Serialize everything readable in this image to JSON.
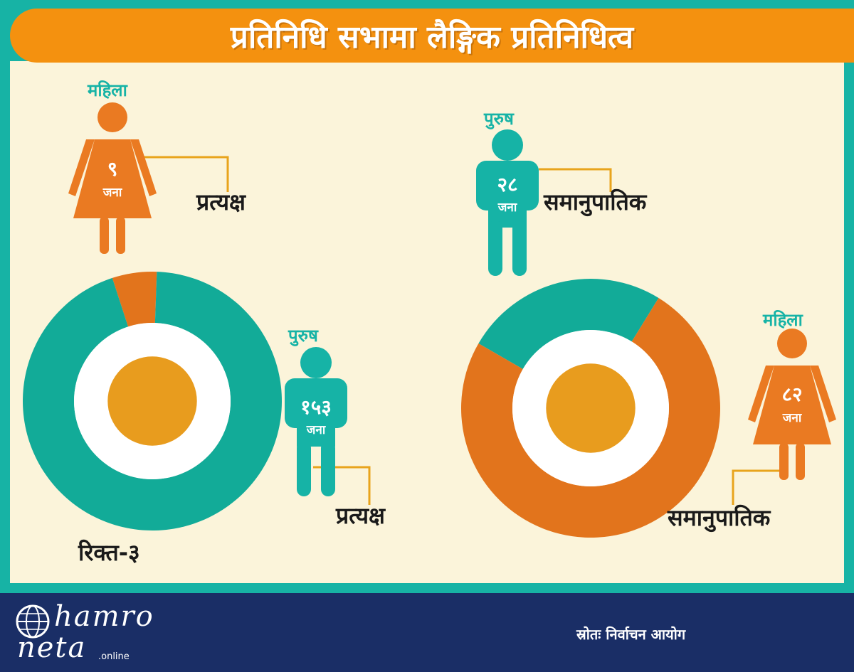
{
  "title": "प्रतिनिधि सभामा लैङ्गिक प्रतिनिधित्व",
  "colors": {
    "teal": "#16b3a6",
    "donut_teal": "#12ab98",
    "orange": "#e2741c",
    "figure_orange": "#ea7a22",
    "center": "#e89c1e",
    "connector": "#e8a41c",
    "header": "#f4910f",
    "footer": "#1a2e66"
  },
  "chart_data": [
    {
      "type": "pie",
      "variant": "donut",
      "categories": [
        "महिला",
        "पुरुष"
      ],
      "values": [
        9,
        153
      ],
      "value_labels": [
        "९",
        "१५३"
      ],
      "unit": "जना",
      "category_labels": [
        "प्रत्यक्ष",
        "प्रत्यक्ष"
      ],
      "annotation": "रिक्त-३"
    },
    {
      "type": "pie",
      "variant": "donut",
      "categories": [
        "पुरुष",
        "महिला"
      ],
      "values": [
        28,
        82
      ],
      "value_labels": [
        "२८",
        "८२"
      ],
      "unit": "जना",
      "category_labels": [
        "समानुपातिक",
        "समानुपातिक"
      ]
    }
  ],
  "footer": {
    "logo_line1": "hamro",
    "logo_line2": "neta",
    "logo_suffix": ".online",
    "source": "स्रोतः निर्वाचन आयोग"
  }
}
